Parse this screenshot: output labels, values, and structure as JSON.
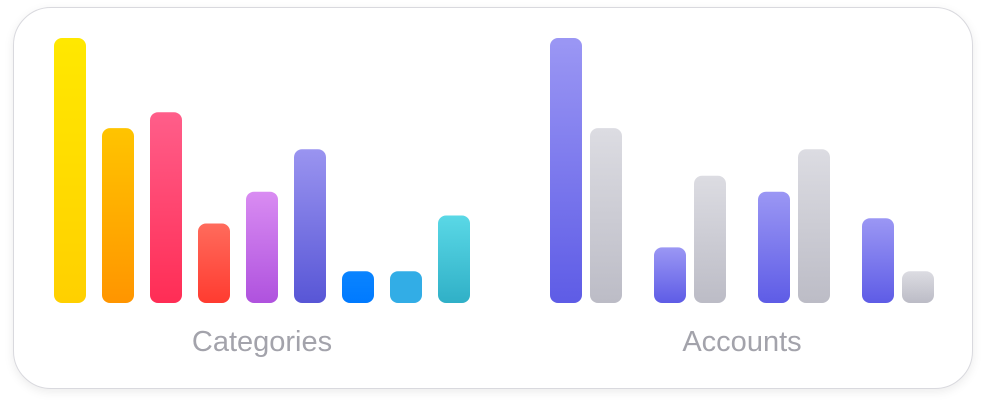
{
  "chart_data": [
    {
      "type": "bar",
      "xlabel": "Categories",
      "categories": [
        "",
        "",
        "",
        "",
        "",
        "",
        "",
        "",
        ""
      ],
      "values": [
        100,
        66,
        72,
        30,
        42,
        58,
        12,
        12,
        33
      ],
      "ylim": [
        0,
        100
      ],
      "grid": false,
      "legend": "none",
      "bar_colors": [
        [
          "#ffe800",
          "#ffd000"
        ],
        [
          "#ffc400",
          "#ff9500"
        ],
        [
          "#ff5e8a",
          "#ff2d55"
        ],
        [
          "#ff6b5c",
          "#ff3b30"
        ],
        [
          "#d98cf2",
          "#af52de"
        ],
        [
          "#9a94f0",
          "#5856d6"
        ],
        [
          "#0a84ff",
          "#007aff"
        ],
        [
          "#32ade6",
          "#32ade6"
        ],
        [
          "#5ad8e6",
          "#30b0c7"
        ]
      ]
    },
    {
      "type": "bar",
      "xlabel": "Accounts",
      "categories": [
        "",
        "",
        "",
        ""
      ],
      "series": [
        {
          "values": [
            100,
            21,
            42,
            32
          ],
          "colors": [
            "#9b97f4",
            "#5e5ce6"
          ]
        },
        {
          "values": [
            66,
            48,
            58,
            12
          ],
          "colors": [
            "#dcdce2",
            "#bcbcc6"
          ]
        }
      ],
      "ylim": [
        0,
        100
      ],
      "grid": false,
      "legend": "none"
    }
  ]
}
